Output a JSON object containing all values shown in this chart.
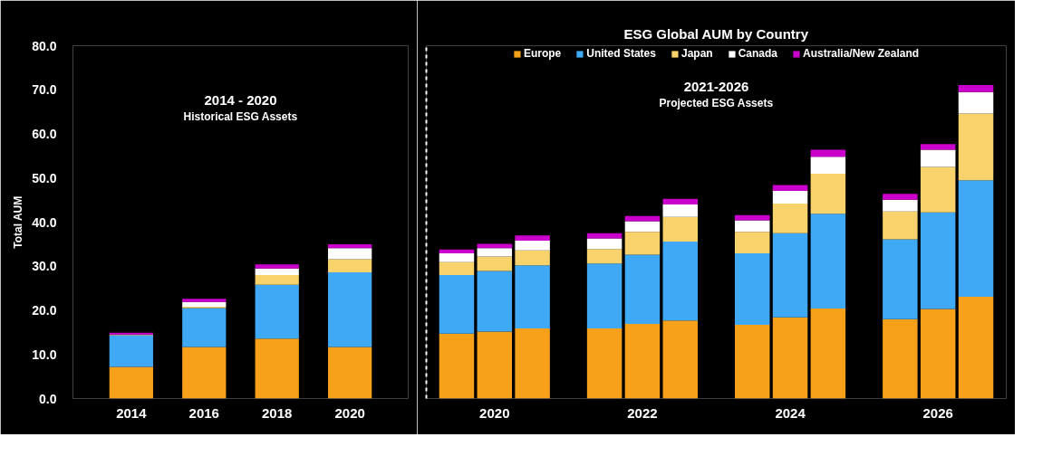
{
  "chart_data": [
    {
      "type": "bar",
      "stacked": true,
      "ylabel": "Total AUM",
      "categories": [
        "2014",
        "2016",
        "2018",
        "2020"
      ],
      "annotations": [
        "2014 - 2020\nHistorical ESG Assets"
      ],
      "ylim": [
        0,
        80
      ],
      "yticks": [
        {
          "value": 0,
          "label": "0.0"
        },
        {
          "value": 10,
          "label": "10.0"
        },
        {
          "value": 20,
          "label": "20.0"
        },
        {
          "value": 30,
          "label": "30.0"
        },
        {
          "value": 40,
          "label": "40.0"
        },
        {
          "value": 50,
          "label": "50.0"
        },
        {
          "value": 60,
          "label": "60.0"
        },
        {
          "value": 70,
          "label": "70.0"
        },
        {
          "value": 80,
          "label": "80.0"
        }
      ],
      "grid": false,
      "series": [
        {
          "color": "#f7a11a",
          "values": [
            7.2,
            11.7,
            13.6,
            11.7
          ]
        },
        {
          "color": "#3fa9f5",
          "values": [
            7.1,
            8.8,
            12.2,
            16.9
          ]
        },
        {
          "color": "#f8d26a",
          "values": [
            0.1,
            0.3,
            2.2,
            3.0
          ]
        },
        {
          "color": "#ffffff",
          "values": [
            0.1,
            1.1,
            1.5,
            2.5
          ]
        },
        {
          "color": "#cc00cc",
          "values": [
            0.4,
            0.7,
            0.9,
            0.9
          ]
        }
      ]
    },
    {
      "type": "bar",
      "stacked": true,
      "title": "ESG Global AUM by Country",
      "legend": "top",
      "tick_labels": "x",
      "categories": [
        null,
        "2020",
        null,
        null,
        "2022",
        null,
        null,
        "2024",
        null,
        null,
        "2026",
        null
      ],
      "annotations": [
        "2021-2026\nProjected ESG Assets"
      ],
      "ylim": [
        0,
        80
      ],
      "grid": false,
      "series": [
        {
          "name": "Europe",
          "color": "#f7a11a",
          "values": [
            14.7,
            15.2,
            15.9,
            15.9,
            16.9,
            17.7,
            16.7,
            18.4,
            20.4,
            18.0,
            20.3,
            23.1
          ]
        },
        {
          "name": "United States",
          "color": "#3fa9f5",
          "values": [
            13.3,
            13.7,
            14.3,
            14.7,
            15.7,
            17.9,
            16.2,
            19.1,
            21.5,
            18.1,
            21.9,
            26.4
          ]
        },
        {
          "name": "Japan",
          "color": "#f8d26a",
          "values": [
            2.9,
            3.3,
            3.4,
            3.3,
            5.2,
            5.6,
            4.9,
            6.7,
            9.1,
            6.3,
            10.3,
            15.1
          ]
        },
        {
          "name": "Canada",
          "color": "#ffffff",
          "values": [
            2.0,
            1.9,
            2.2,
            2.4,
            2.4,
            2.8,
            2.6,
            2.9,
            3.8,
            2.7,
            3.9,
            4.9
          ]
        },
        {
          "name": "Australia/New Zealand",
          "color": "#cc00cc",
          "values": [
            0.9,
            1.0,
            1.2,
            1.2,
            1.2,
            1.3,
            1.2,
            1.3,
            1.6,
            1.3,
            1.3,
            1.6
          ]
        }
      ]
    }
  ]
}
